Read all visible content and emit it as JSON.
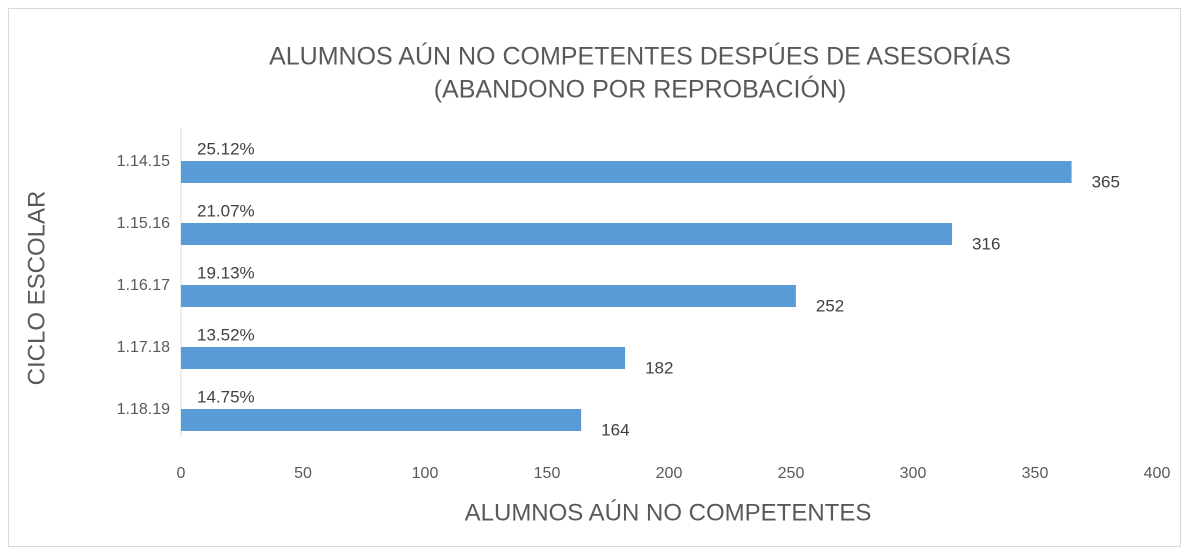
{
  "chart_data": {
    "type": "bar",
    "orientation": "horizontal",
    "title": [
      "ALUMNOS AÚN NO COMPETENTES DESPÚES DE ASESORÍAS",
      "(ABANDONO POR REPROBACIÓN)"
    ],
    "x_label": "ALUMNOS AÚN NO COMPETENTES",
    "y_label": "CICLO ESCOLAR",
    "categories": [
      "1.14.15",
      "1.15.16",
      "1.16.17",
      "1.17.18",
      "1.18.19"
    ],
    "values": [
      365,
      316,
      252,
      182,
      164
    ],
    "annotations": [
      "25.12%",
      "21.07%",
      "19.13%",
      "13.52%",
      "14.75%"
    ],
    "color": "#5b9bd5",
    "xlim": [
      0,
      400
    ],
    "xticks": [
      0,
      50,
      100,
      150,
      200,
      250,
      300,
      350,
      400
    ],
    "grid": false
  }
}
